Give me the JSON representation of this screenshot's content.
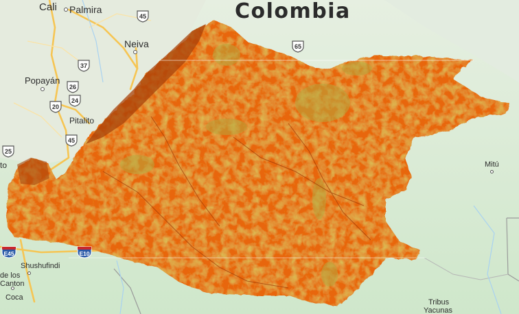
{
  "map": {
    "country_label": "Colombia",
    "cities": [
      {
        "name": "Cali"
      },
      {
        "name": "Palmira"
      },
      {
        "name": "Neiva"
      },
      {
        "name": "Popayán"
      },
      {
        "name": "Pitalito"
      },
      {
        "name": "Mitú"
      },
      {
        "name": "Shushufindi"
      },
      {
        "name": "Coca"
      },
      {
        "name": "Tribus"
      },
      {
        "name": "Yacunas"
      },
      {
        "name": "de los"
      },
      {
        "name": "Canton"
      },
      {
        "name": "to"
      }
    ],
    "route_shields": [
      {
        "number": "45",
        "kind": "us-highway"
      },
      {
        "number": "65",
        "kind": "us-highway"
      },
      {
        "number": "37",
        "kind": "us-highway"
      },
      {
        "number": "26",
        "kind": "us-highway"
      },
      {
        "number": "20",
        "kind": "us-highway"
      },
      {
        "number": "24",
        "kind": "us-highway"
      },
      {
        "number": "45",
        "kind": "us-highway"
      },
      {
        "number": "25",
        "kind": "us-highway"
      },
      {
        "number": "E45",
        "kind": "interstate"
      },
      {
        "number": "E10",
        "kind": "interstate"
      }
    ],
    "overlay": {
      "description_colors": {
        "dominant": "#e8660d",
        "dark_edge": "#9c3a05",
        "vegetation": "#b3a23a",
        "highlight": "#f0a020"
      }
    },
    "basemap_colors": {
      "land": "#d6ebd3",
      "land_light": "#e9efe4",
      "road": "#f6c553",
      "river": "#a9d2f0"
    }
  }
}
